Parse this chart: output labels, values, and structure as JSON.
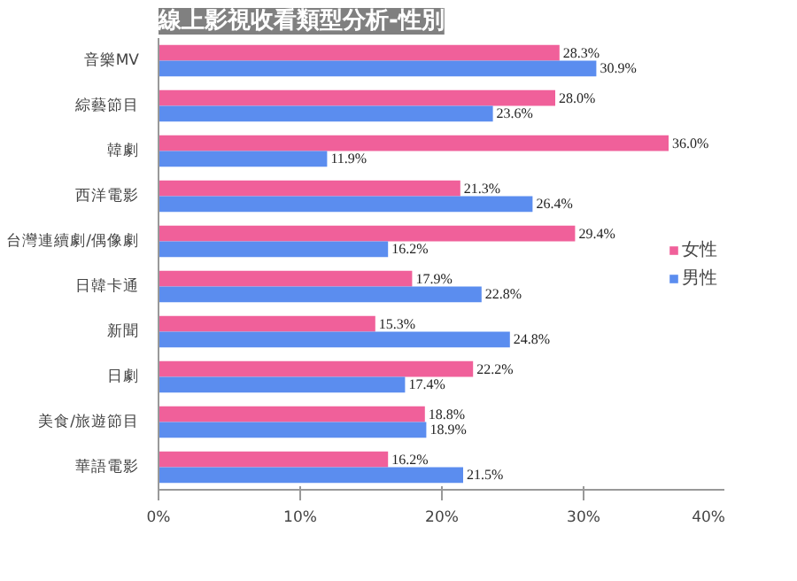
{
  "chart_data": {
    "type": "bar",
    "orientation": "horizontal",
    "title": "線上影視收看類型分析-性別",
    "categories": [
      "音樂MV",
      "綜藝節目",
      "韓劇",
      "西洋電影",
      "台灣連續劇/偶像劇",
      "日韓卡通",
      "新聞",
      "日劇",
      "美食/旅遊節目",
      "華語電影"
    ],
    "series": [
      {
        "name": "女性",
        "color": "#f0609a",
        "values": [
          28.3,
          28.0,
          36.0,
          21.3,
          29.4,
          17.9,
          15.3,
          22.2,
          18.8,
          16.2
        ],
        "value_labels": [
          "28.3%",
          "28.0%",
          "36.0%",
          "21.3%",
          "29.4%",
          "17.9%",
          "15.3%",
          "22.2%",
          "18.8%",
          "16.2%"
        ]
      },
      {
        "name": "男性",
        "color": "#5b8def",
        "values": [
          30.9,
          23.6,
          11.9,
          26.4,
          16.2,
          22.8,
          24.8,
          17.4,
          18.9,
          21.5
        ],
        "value_labels": [
          "30.9%",
          "23.6%",
          "11.9%",
          "26.4%",
          "16.2%",
          "22.8%",
          "24.8%",
          "17.4%",
          "18.9%",
          "21.5%"
        ]
      }
    ],
    "xlim": [
      0,
      40
    ],
    "xticks": [
      {
        "value": 0,
        "label": "0%"
      },
      {
        "value": 10,
        "label": "10%"
      },
      {
        "value": 20,
        "label": "20%"
      },
      {
        "value": 30,
        "label": "30%"
      },
      {
        "value": 40,
        "label": "40%"
      }
    ],
    "legend": "right",
    "grid": false
  }
}
